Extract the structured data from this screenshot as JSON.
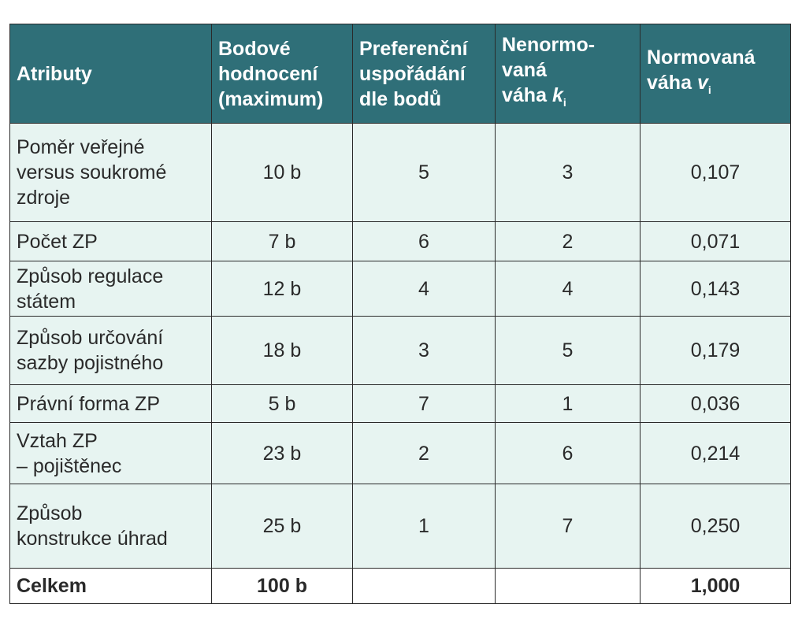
{
  "table": {
    "header": [
      {
        "lines": [
          "Atributy"
        ]
      },
      {
        "lines": [
          "Bodové",
          "hodnocení",
          "(maximum)"
        ]
      },
      {
        "lines": [
          "Preferenční",
          "uspořádání",
          "dle bodů"
        ]
      },
      {
        "lines": [
          "Nenormo-",
          "vaná",
          "váha"
        ],
        "var": "k",
        "sub": "i"
      },
      {
        "lines": [
          "Normovaná",
          "váha"
        ],
        "var": "v",
        "sub": "i"
      }
    ],
    "rows": [
      [
        [
          "Poměr veřejné",
          "versus soukromé",
          "zdroje"
        ],
        "10 b",
        "5",
        "3",
        "0,107"
      ],
      [
        [
          "Počet ZP"
        ],
        "7 b",
        "6",
        "2",
        "0,071"
      ],
      [
        [
          "Způsob regulace",
          "státem"
        ],
        "12 b",
        "4",
        "4",
        "0,143"
      ],
      [
        [
          "Způsob určování",
          "sazby pojistného"
        ],
        "18 b",
        "3",
        "5",
        "0,179"
      ],
      [
        [
          "Právní forma ZP"
        ],
        "5 b",
        "7",
        "1",
        "0,036"
      ],
      [
        [
          "Vztah ZP",
          "– pojištěnec"
        ],
        "23 b",
        "2",
        "6",
        "0,214"
      ],
      [
        [
          "Způsob",
          "konstrukce úhrad"
        ],
        "25 b",
        "1",
        "7",
        "0,250"
      ]
    ],
    "total": [
      "Celkem",
      "100 b",
      null,
      null,
      "1,000"
    ]
  }
}
